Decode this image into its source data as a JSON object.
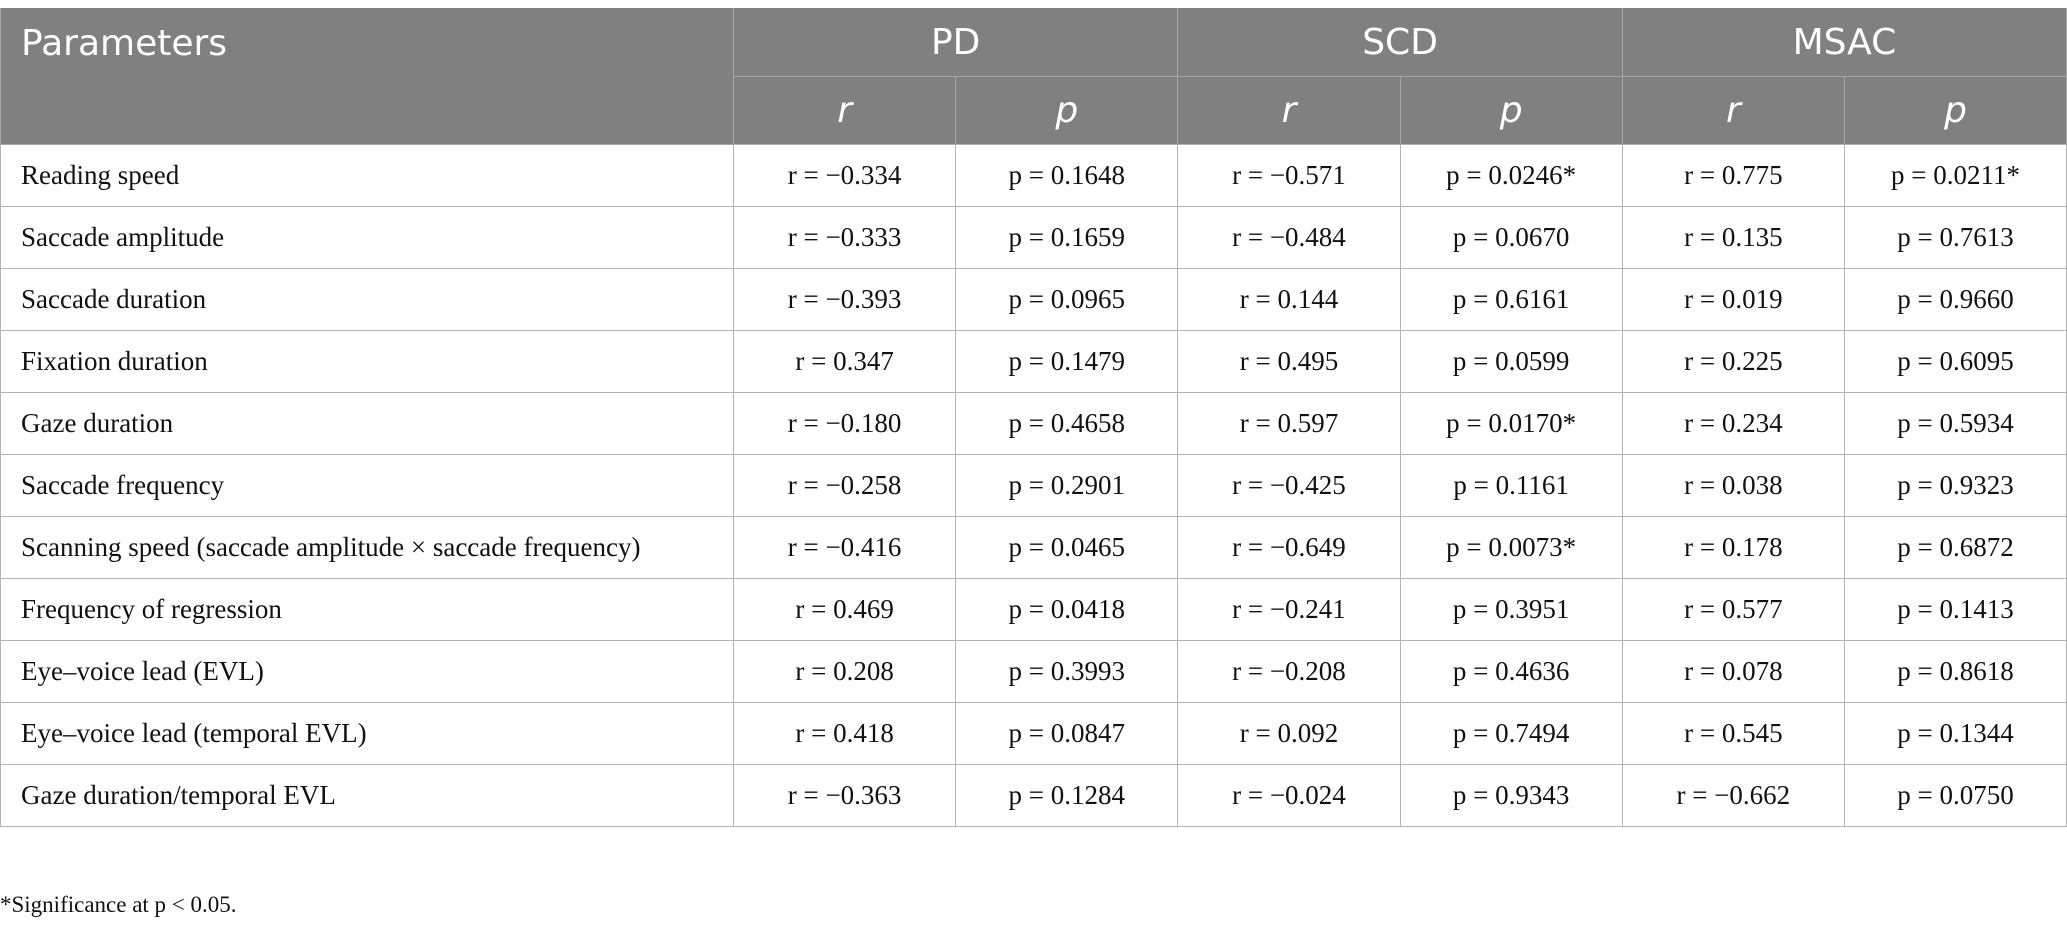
{
  "header": {
    "parameters": "Parameters",
    "groups": [
      "PD",
      "SCD",
      "MSAC"
    ],
    "subheaders": [
      "r",
      "p",
      "r",
      "p",
      "r",
      "p"
    ]
  },
  "rows": [
    {
      "label": "Reading speed",
      "cells": [
        "r = −0.334",
        "p = 0.1648",
        "r = −0.571",
        "p = 0.0246*",
        "r = 0.775",
        "p = 0.0211*"
      ]
    },
    {
      "label": "Saccade amplitude",
      "cells": [
        "r = −0.333",
        "p = 0.1659",
        "r = −0.484",
        "p = 0.0670",
        "r = 0.135",
        "p = 0.7613"
      ]
    },
    {
      "label": "Saccade duration",
      "cells": [
        "r = −0.393",
        "p = 0.0965",
        "r = 0.144",
        "p = 0.6161",
        "r = 0.019",
        "p = 0.9660"
      ]
    },
    {
      "label": "Fixation duration",
      "cells": [
        "r = 0.347",
        "p = 0.1479",
        "r = 0.495",
        "p = 0.0599",
        "r = 0.225",
        "p = 0.6095"
      ]
    },
    {
      "label": "Gaze duration",
      "cells": [
        "r = −0.180",
        "p = 0.4658",
        "r = 0.597",
        "p = 0.0170*",
        "r = 0.234",
        "p = 0.5934"
      ]
    },
    {
      "label": "Saccade frequency",
      "cells": [
        "r = −0.258",
        "p = 0.2901",
        "r = −0.425",
        "p = 0.1161",
        "r = 0.038",
        "p = 0.9323"
      ]
    },
    {
      "label": "Scanning speed (saccade amplitude × saccade frequency)",
      "cells": [
        "r = −0.416",
        "p = 0.0465",
        "r = −0.649",
        "p = 0.0073*",
        "r = 0.178",
        "p = 0.6872"
      ]
    },
    {
      "label": "Frequency of regression",
      "cells": [
        "r = 0.469",
        "p = 0.0418",
        "r = −0.241",
        "p = 0.3951",
        "r = 0.577",
        "p = 0.1413"
      ]
    },
    {
      "label": "Eye–voice lead (EVL)",
      "cells": [
        "r = 0.208",
        "p = 0.3993",
        "r = −0.208",
        "p = 0.4636",
        "r = 0.078",
        "p = 0.8618"
      ]
    },
    {
      "label": "Eye–voice lead (temporal EVL)",
      "cells": [
        "r = 0.418",
        "p = 0.0847",
        "r = 0.092",
        "p = 0.7494",
        "r = 0.545",
        "p = 0.1344"
      ]
    },
    {
      "label": "Gaze duration/temporal EVL",
      "cells": [
        "r = −0.363",
        "p = 0.1284",
        "r = −0.024",
        "p = 0.9343",
        "r = −0.662",
        "p = 0.0750"
      ]
    }
  ],
  "footnote": "*Significance at p < 0.05."
}
